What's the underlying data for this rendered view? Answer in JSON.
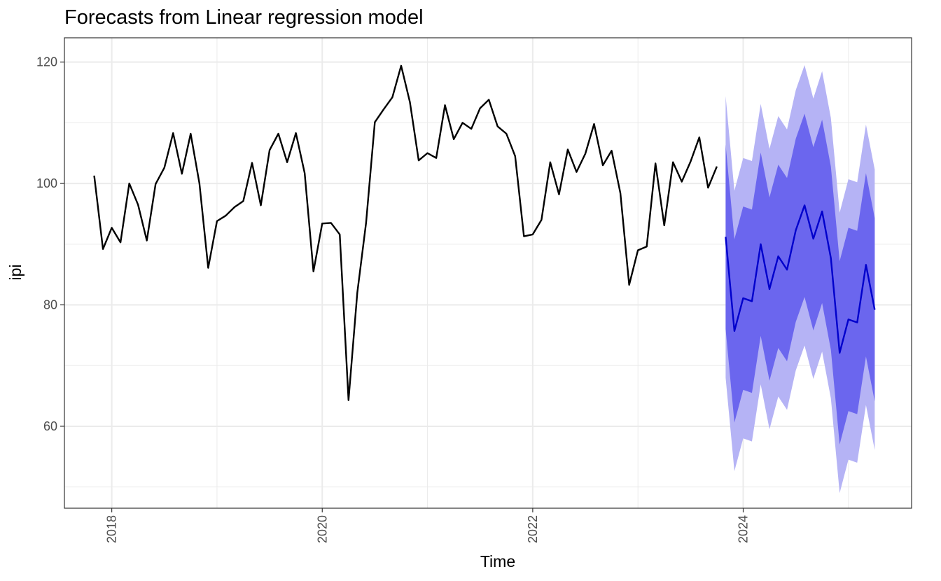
{
  "chart_data": {
    "type": "line",
    "title": "Forecasts from Linear regression model",
    "xlabel": "Time",
    "ylabel": "ipi",
    "xlim": [
      2017.55,
      2025.6
    ],
    "ylim": [
      46.5,
      124
    ],
    "x_ticks": [
      2018,
      2020,
      2022,
      2024
    ],
    "x_tick_labels": [
      "2018",
      "2020",
      "2022",
      "2024"
    ],
    "y_ticks": [
      60,
      80,
      100,
      120
    ],
    "y_tick_labels": [
      "60",
      "80",
      "100",
      "120"
    ],
    "grid": true,
    "colors": {
      "history": "#000000",
      "forecast": "#0000cc",
      "band80": "#6b66ee",
      "band95": "#b5b3f5",
      "grid": "#ebebeb",
      "panel_border": "#333333"
    },
    "history": {
      "start": 2017.833,
      "step": 0.0833333,
      "values": [
        101.3,
        89.2,
        92.7,
        90.3,
        100.0,
        96.5,
        90.6,
        99.9,
        102.6,
        108.3,
        101.6,
        108.2,
        100.0,
        86.1,
        93.8,
        94.7,
        96.1,
        97.1,
        103.4,
        96.4,
        105.5,
        108.2,
        103.5,
        108.3,
        101.7,
        85.5,
        93.4,
        93.5,
        91.6,
        64.3,
        82.0,
        93.5,
        110.1,
        112.2,
        114.2,
        119.4,
        113.4,
        103.8,
        105.0,
        104.2,
        112.9,
        107.3,
        110.0,
        109.0,
        112.4,
        113.8,
        109.4,
        108.2,
        104.5,
        91.3,
        91.6,
        94.0,
        103.5,
        98.2,
        105.6,
        101.9,
        104.9,
        109.8,
        103.0,
        105.4,
        98.4,
        83.3,
        89.0,
        89.6,
        103.3,
        93.1,
        103.5,
        100.3,
        103.6,
        107.6,
        99.3,
        102.8
      ]
    },
    "forecast": {
      "start": 2023.833,
      "step": 0.0833333,
      "mean": [
        91.2,
        75.7,
        81.1,
        80.6,
        90.0,
        82.6,
        88.0,
        85.8,
        92.3,
        96.4,
        90.9,
        95.4,
        87.7,
        72.1,
        77.6,
        77.1,
        86.6,
        79.2
      ],
      "lo80": [
        76.0,
        60.6,
        66.0,
        65.5,
        74.9,
        67.5,
        72.9,
        70.7,
        77.2,
        81.3,
        75.8,
        80.3,
        72.6,
        57.0,
        62.5,
        62.0,
        71.5,
        64.1
      ],
      "hi80": [
        106.4,
        90.8,
        96.2,
        95.7,
        105.1,
        97.7,
        103.1,
        100.9,
        107.4,
        111.5,
        106.0,
        110.5,
        102.8,
        87.2,
        92.7,
        92.2,
        101.7,
        94.3
      ],
      "lo95": [
        68.0,
        52.6,
        58.0,
        57.5,
        66.9,
        59.5,
        64.9,
        62.7,
        69.2,
        73.3,
        67.8,
        72.3,
        64.6,
        49.0,
        54.5,
        54.0,
        63.5,
        56.1
      ],
      "hi95": [
        114.4,
        98.8,
        104.2,
        103.7,
        113.1,
        105.7,
        111.1,
        108.9,
        115.4,
        119.5,
        114.0,
        118.5,
        110.8,
        95.2,
        100.7,
        100.2,
        109.7,
        102.3
      ]
    }
  }
}
